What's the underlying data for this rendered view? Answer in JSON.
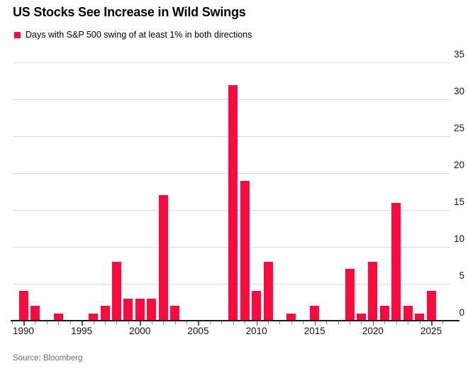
{
  "header": {
    "title": "US Stocks See Increase in Wild Swings",
    "legend_label": "Days with S&P 500 swing of at least 1% in both directions"
  },
  "footer": {
    "source": "Source: Bloomberg"
  },
  "colors": {
    "bar": "#ff0a3e",
    "grid": "#dcdcdc",
    "axis": "#1a1a1a",
    "tick_minor": "#8a8a8a",
    "tick_major": "#555555",
    "label": "#1a1a1a",
    "source_text": "#6e6e6e"
  },
  "chart_data": {
    "type": "bar",
    "title": "US Stocks See Increase in Wild Swings",
    "legend": [
      "Days with S&P 500 swing of at least 1% in both directions"
    ],
    "x": [
      1990,
      1991,
      1992,
      1993,
      1994,
      1995,
      1996,
      1997,
      1998,
      1999,
      2000,
      2001,
      2002,
      2003,
      2004,
      2005,
      2006,
      2007,
      2008,
      2009,
      2010,
      2011,
      2012,
      2013,
      2014,
      2015,
      2016,
      2017,
      2018,
      2019,
      2020,
      2021,
      2022,
      2023,
      2024,
      2025
    ],
    "values": [
      4,
      2,
      0,
      1,
      0,
      0,
      1,
      2,
      8,
      3,
      3,
      3,
      17,
      2,
      0,
      0,
      0,
      0,
      32,
      19,
      4,
      8,
      0,
      1,
      0,
      2,
      0,
      0,
      7,
      1,
      8,
      2,
      16,
      2,
      1,
      4
    ],
    "ylim": [
      0,
      35
    ],
    "yticks": [
      0,
      5,
      10,
      15,
      20,
      25,
      30,
      35
    ],
    "xticks_labeled": [
      1990,
      1995,
      2000,
      2005,
      2010,
      2015,
      2020,
      2025
    ],
    "xticks_minor_range": [
      1989,
      2026
    ],
    "ylabel": "",
    "xlabel": "",
    "grid": "horizontal",
    "legend_position": "top-left",
    "yaxis_side": "right"
  }
}
